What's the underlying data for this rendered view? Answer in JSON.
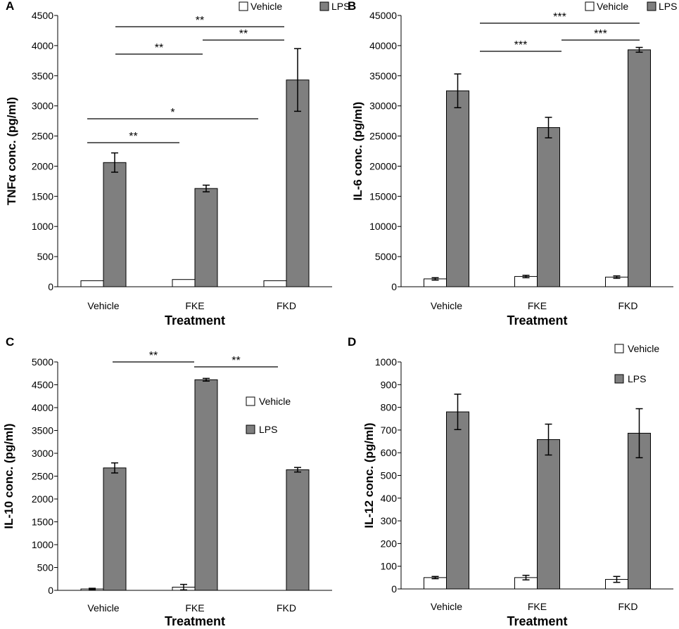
{
  "colors": {
    "vehicle": "#ffffff",
    "lps": "#7f7f7f",
    "axis": "#000000"
  },
  "chart_data": [
    {
      "type": "bar",
      "panel_label": "A",
      "ylabel": "TNFα conc. (pg/ml)",
      "xlabel": "Treatment",
      "categories": [
        "Vehicle",
        "FKE",
        "FKD"
      ],
      "ylim": [
        0,
        4500
      ],
      "yticks": [
        "0",
        "500",
        "1000",
        "1500",
        "2000",
        "2500",
        "3000",
        "3500",
        "4000",
        "4500"
      ],
      "legend": {
        "position": "top-right",
        "entries": [
          "Vehicle",
          "LPS"
        ]
      },
      "series": [
        {
          "name": "Vehicle",
          "values": [
            100,
            120,
            100
          ],
          "errors": [
            0,
            0,
            0
          ]
        },
        {
          "name": "LPS",
          "values": [
            2060,
            1630,
            3430
          ],
          "errors": [
            160,
            55,
            520
          ]
        }
      ],
      "significance": [
        {
          "from": "Vehicle Vehicle",
          "to": "FKE Vehicle",
          "label": "**"
        },
        {
          "from": "Vehicle Vehicle",
          "to": "FKD Vehicle",
          "label": "*"
        },
        {
          "from": "Vehicle LPS",
          "to": "FKE LPS",
          "label": "**"
        },
        {
          "from": "FKE LPS",
          "to": "FKD LPS",
          "label": "**"
        },
        {
          "from": "Vehicle LPS",
          "to": "FKD LPS",
          "label": "**"
        }
      ]
    },
    {
      "type": "bar",
      "panel_label": "B",
      "ylabel": "IL-6 conc. (pg/ml)",
      "xlabel": "Treatment",
      "categories": [
        "Vehicle",
        "FKE",
        "FKD"
      ],
      "ylim": [
        0,
        45000
      ],
      "yticks": [
        "0",
        "5000",
        "10000",
        "15000",
        "20000",
        "25000",
        "30000",
        "35000",
        "40000",
        "45000"
      ],
      "legend": {
        "position": "top-right",
        "entries": [
          "Vehicle",
          "LPS"
        ]
      },
      "series": [
        {
          "name": "Vehicle",
          "values": [
            1300,
            1700,
            1600
          ],
          "errors": [
            200,
            200,
            200
          ]
        },
        {
          "name": "LPS",
          "values": [
            32500,
            26400,
            39300
          ],
          "errors": [
            2800,
            1700,
            400
          ]
        }
      ],
      "significance": [
        {
          "from": "Vehicle LPS",
          "to": "FKE LPS",
          "label": "***"
        },
        {
          "from": "FKE LPS",
          "to": "FKD LPS",
          "label": "***"
        },
        {
          "from": "Vehicle LPS",
          "to": "FKD LPS",
          "label": "***"
        }
      ]
    },
    {
      "type": "bar",
      "panel_label": "C",
      "ylabel": "IL-10 conc. (pg/ml)",
      "xlabel": "Treatment",
      "categories": [
        "Vehicle",
        "FKE",
        "FKD"
      ],
      "ylim": [
        0,
        5000
      ],
      "yticks": [
        "0",
        "500",
        "1000",
        "1500",
        "2000",
        "2500",
        "3000",
        "3500",
        "4000",
        "4500",
        "5000"
      ],
      "legend": {
        "position": "right",
        "entries": [
          "Vehicle",
          "LPS"
        ]
      },
      "series": [
        {
          "name": "Vehicle",
          "values": [
            30,
            70,
            0
          ],
          "errors": [
            15,
            60,
            0
          ]
        },
        {
          "name": "LPS",
          "values": [
            2680,
            4610,
            2640
          ],
          "errors": [
            110,
            30,
            50
          ]
        }
      ],
      "significance": [
        {
          "from": "Vehicle LPS",
          "to": "FKE LPS",
          "label": "**"
        },
        {
          "from": "FKE LPS",
          "to": "FKD LPS",
          "label": "**"
        }
      ]
    },
    {
      "type": "bar",
      "panel_label": "D",
      "ylabel": "IL-12 conc. (pg/ml)",
      "xlabel": "Treatment",
      "categories": [
        "Vehicle",
        "FKE",
        "FKD"
      ],
      "ylim": [
        0,
        1000
      ],
      "yticks": [
        "0",
        "100",
        "200",
        "300",
        "400",
        "500",
        "600",
        "700",
        "800",
        "900",
        "1000"
      ],
      "legend": {
        "position": "top-right",
        "entries": [
          "Vehicle",
          "LPS"
        ]
      },
      "series": [
        {
          "name": "Vehicle",
          "values": [
            50,
            50,
            42
          ],
          "errors": [
            5,
            10,
            13
          ]
        },
        {
          "name": "LPS",
          "values": [
            780,
            658,
            686
          ],
          "errors": [
            78,
            68,
            108
          ]
        }
      ],
      "significance": []
    }
  ]
}
